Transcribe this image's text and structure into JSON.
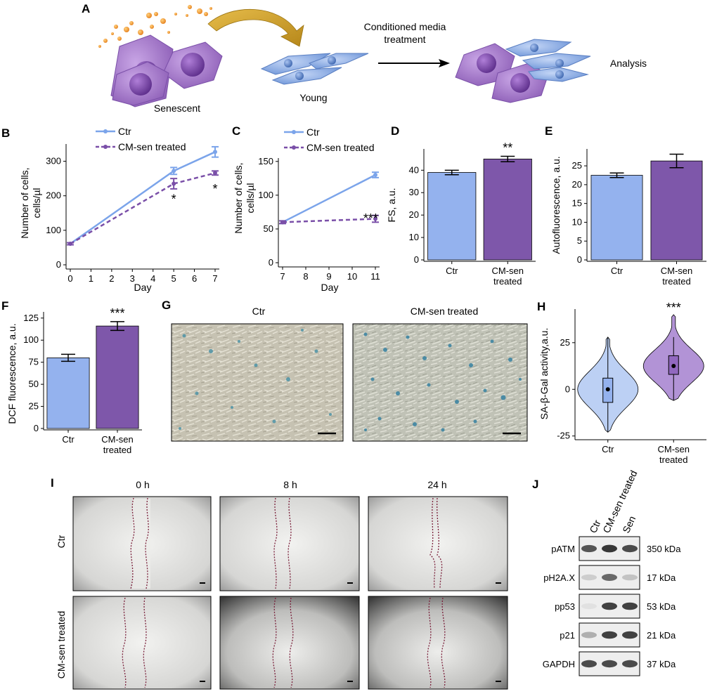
{
  "colors": {
    "ctr": "#94B2EE",
    "cm": "#7E57AA",
    "ctr_line": "#7BA4EA",
    "cm_line": "#7A4FA8",
    "cm_violin": "#B293D6",
    "ctr_violin": "#BCD0F4",
    "arrow_gold": "#D7A62A",
    "dots": "#F2A43A"
  },
  "panelA": {
    "letter": "A",
    "senescent_label": "Senescent",
    "young_label": "Young",
    "treatment_label_line1": "Conditioned media",
    "treatment_label_line2": "treatment",
    "analysis_label": "Analysis"
  },
  "chart_data": [
    {
      "panel": "B",
      "type": "line",
      "x": [
        0,
        5,
        7
      ],
      "series": [
        {
          "name": "Ctr",
          "values": [
            61,
            272,
            327
          ],
          "err": [
            3,
            10,
            15
          ],
          "style": "solid"
        },
        {
          "name": "CM-sen treated",
          "values": [
            61,
            235,
            266
          ],
          "err": [
            3,
            15,
            6
          ],
          "style": "dashed"
        }
      ],
      "xticks": [
        "0",
        "1",
        "2",
        "3",
        "4",
        "5",
        "6",
        "7"
      ],
      "xticks_values": [
        0,
        1,
        2,
        3,
        4,
        5,
        6,
        7
      ],
      "yticks": [
        "0",
        "100",
        "200",
        "300"
      ],
      "yticks_values": [
        0,
        100,
        200,
        300
      ],
      "xlim": [
        0,
        7
      ],
      "ylim": [
        0,
        350
      ],
      "xlabel": "Day",
      "ylabel_line1": "Number of cells,",
      "ylabel_line2": "cells/µl",
      "annotations": [
        {
          "x": 5,
          "y": 202,
          "text": "*"
        },
        {
          "x": 7,
          "y": 232,
          "text": "*"
        }
      ],
      "legend_position": "top-left"
    },
    {
      "panel": "C",
      "type": "line",
      "x": [
        7,
        11
      ],
      "series": [
        {
          "name": "Ctr",
          "values": [
            60,
            130
          ],
          "err": [
            2,
            4
          ],
          "style": "solid"
        },
        {
          "name": "CM-sen treated",
          "values": [
            60,
            65
          ],
          "err": [
            2,
            5
          ],
          "style": "dashed"
        }
      ],
      "xticks": [
        "7",
        "8",
        "9",
        "10",
        "11"
      ],
      "xticks_values": [
        7,
        8,
        9,
        10,
        11
      ],
      "yticks": [
        "0",
        "50",
        "100",
        "150"
      ],
      "yticks_values": [
        0,
        50,
        100,
        150
      ],
      "xlim": [
        7,
        11
      ],
      "ylim": [
        0,
        155
      ],
      "xlabel": "Day",
      "ylabel_line1": "Number of cells,",
      "ylabel_line2": "cells/µl",
      "annotations": [
        {
          "x": 10.8,
          "y": 72,
          "text": "***"
        }
      ],
      "legend_position": "top-left"
    },
    {
      "panel": "D",
      "type": "bar",
      "categories": [
        "Ctr",
        "CM-sen treated"
      ],
      "category_lines": [
        [
          "Ctr"
        ],
        [
          "CM-sen",
          "treated"
        ]
      ],
      "values": [
        39,
        45
      ],
      "err": [
        1,
        1.2
      ],
      "yticks": [
        "0",
        "10",
        "20",
        "30",
        "40"
      ],
      "yticks_values": [
        0,
        10,
        20,
        30,
        40
      ],
      "ylim": [
        0,
        49.5
      ],
      "ylabel": "FS, a.u.",
      "annotations": [
        {
          "index": 1,
          "text": "**"
        }
      ]
    },
    {
      "panel": "E",
      "type": "bar",
      "categories": [
        "Ctr",
        "CM-sen treated"
      ],
      "category_lines": [
        [
          "Ctr"
        ],
        [
          "CM-sen",
          "treated"
        ]
      ],
      "values": [
        22.5,
        26.3
      ],
      "err": [
        0.6,
        1.8
      ],
      "yticks": [
        "0",
        "5",
        "10",
        "15",
        "20",
        "25"
      ],
      "yticks_values": [
        0,
        5,
        10,
        15,
        20,
        25
      ],
      "ylim": [
        0,
        29.5
      ],
      "ylabel": "Autofluorescence, a.u.",
      "annotations": []
    },
    {
      "panel": "F",
      "type": "bar",
      "categories": [
        "Ctr",
        "CM-sen treated"
      ],
      "category_lines": [
        [
          "Ctr"
        ],
        [
          "CM-sen",
          "treated"
        ]
      ],
      "values": [
        80,
        116
      ],
      "err": [
        4,
        5
      ],
      "yticks": [
        "0",
        "25",
        "50",
        "75",
        "100",
        "125"
      ],
      "yticks_values": [
        0,
        25,
        50,
        75,
        100,
        125
      ],
      "ylim": [
        0,
        132
      ],
      "ylabel": "DCF fluorescence, a.u.",
      "annotations": [
        {
          "index": 1,
          "text": "***"
        }
      ]
    },
    {
      "panel": "H",
      "type": "violin",
      "categories": [
        "Ctr",
        "CM-sen treated"
      ],
      "category_lines": [
        [
          "Ctr"
        ],
        [
          "CM-sen",
          "treated"
        ]
      ],
      "medians": [
        0,
        12.5
      ],
      "q1": [
        -7,
        8
      ],
      "q3": [
        6,
        18
      ],
      "whisker_low": [
        -23,
        -6
      ],
      "whisker_high": [
        28,
        28
      ],
      "range_low": [
        -23,
        -6
      ],
      "range_high": [
        28,
        40
      ],
      "yticks": [
        "-25",
        "0",
        "25"
      ],
      "yticks_values": [
        -25,
        0,
        25
      ],
      "ylim": [
        -27,
        43
      ],
      "ylabel": "SA-β-Gal activity,a.u.",
      "annotations": [
        {
          "index": 1,
          "text": "***"
        }
      ]
    }
  ],
  "panelG": {
    "letter": "G",
    "titles": [
      "Ctr",
      "CM-sen treated"
    ]
  },
  "panelI": {
    "letter": "I",
    "times": [
      "0 h",
      "8 h",
      "24 h"
    ],
    "rows": [
      "Ctr",
      "CM-sen treated"
    ]
  },
  "panelJ": {
    "letter": "J",
    "lanes": [
      "Ctr",
      "CM-sen treated",
      "Sen"
    ],
    "blots": [
      {
        "protein": "pATM",
        "size": "350 kDa",
        "intensity": [
          0.75,
          0.9,
          0.8
        ]
      },
      {
        "protein": "pH2A.X",
        "size": "17 kDa",
        "intensity": [
          0.15,
          0.65,
          0.2
        ]
      },
      {
        "protein": "pp53",
        "size": "53 kDa",
        "intensity": [
          0.05,
          0.85,
          0.85
        ]
      },
      {
        "protein": "p21",
        "size": "21 kDa",
        "intensity": [
          0.3,
          0.85,
          0.85
        ]
      },
      {
        "protein": "GAPDH",
        "size": "37 kDa",
        "intensity": [
          0.8,
          0.8,
          0.8
        ]
      }
    ]
  },
  "panel_letters": [
    "B",
    "C",
    "D",
    "E",
    "F",
    "H"
  ]
}
